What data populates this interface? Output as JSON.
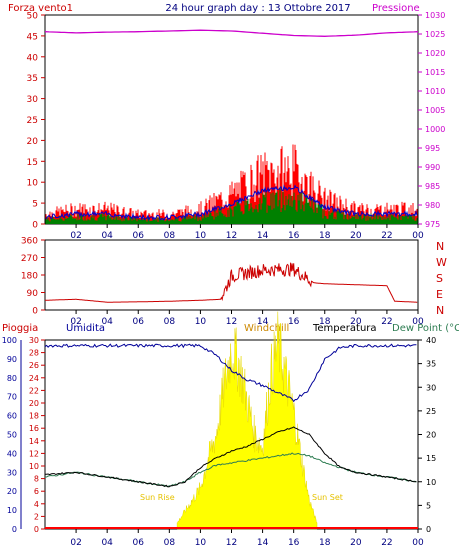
{
  "header": {
    "left_label": "Forza vento1",
    "title": "24 hour graph day : 13 Ottobre 2017",
    "right_label": "Pressione"
  },
  "wind_panel": {
    "left_ticks": [
      "0",
      "5",
      "10",
      "15",
      "20",
      "25",
      "30",
      "35",
      "40",
      "45",
      "50"
    ],
    "right_ticks": [
      "975",
      "980",
      "985",
      "990",
      "995",
      "1000",
      "1005",
      "1010",
      "1015",
      "1020",
      "1025",
      "1030"
    ],
    "x_ticks": [
      "02",
      "04",
      "06",
      "08",
      "10",
      "12",
      "14",
      "16",
      "18",
      "20",
      "22",
      "00"
    ]
  },
  "direction_panel": {
    "left_ticks": [
      "0",
      "90",
      "180",
      "270",
      "360"
    ],
    "right_letters": [
      "N",
      "W",
      "S",
      "E",
      "N"
    ],
    "x_ticks": [
      "02",
      "04",
      "06",
      "08",
      "10",
      "12",
      "14",
      "16",
      "18",
      "20",
      "22",
      "00"
    ]
  },
  "weather_panel": {
    "legend": {
      "pioggia": "Pioggia",
      "umidita": "Umidita",
      "windchill": "Windchill",
      "temperatura": "Temperatura",
      "dewpoint": "Dew Point (°C"
    },
    "hum_ticks": [
      "0",
      "10",
      "20",
      "30",
      "40",
      "50",
      "60",
      "70",
      "80",
      "90",
      "100"
    ],
    "rain_ticks": [
      "0",
      "2",
      "4",
      "6",
      "8",
      "10",
      "12",
      "14",
      "16",
      "18",
      "20",
      "22",
      "24",
      "26",
      "28",
      "30"
    ],
    "temp_ticks": [
      "0",
      "5",
      "10",
      "15",
      "20",
      "25",
      "30",
      "35",
      "40"
    ],
    "sun_rise": "Sun Rise",
    "sun_set": "Sun Set",
    "x_ticks": [
      "02",
      "04",
      "06",
      "08",
      "10",
      "12",
      "14",
      "16",
      "18",
      "20",
      "22",
      "00"
    ]
  },
  "colors": {
    "axis_red": "#cc0000",
    "pressure": "#cc00cc",
    "title_blue": "#000080",
    "wind_red": "#ff0000",
    "wind_green": "#008000",
    "wind_blue": "#0000cc",
    "direction": "#cc0000",
    "humidity": "#000099",
    "temperature": "#000000",
    "dewpoint": "#2e7d52",
    "windchill": "#cc8800",
    "solar": "#ffff00",
    "rain": "#ff0000"
  },
  "chart_data": [
    {
      "type": "line",
      "title": "24 hour graph day : 13 Ottobre 2017",
      "x": [
        0,
        2,
        4,
        6,
        8,
        10,
        12,
        14,
        16,
        18,
        20,
        22,
        24
      ],
      "series": [
        {
          "name": "Forza vento1",
          "axis": "left",
          "values": [
            2,
            3,
            3,
            2,
            2,
            3,
            6,
            10,
            11,
            5,
            3,
            3,
            3
          ]
        },
        {
          "name": "Pressione",
          "axis": "right",
          "values": [
            1025.6,
            1025.3,
            1025.5,
            1025.6,
            1025.8,
            1026.0,
            1025.8,
            1025.2,
            1024.6,
            1024.4,
            1024.7,
            1025.3,
            1025.6
          ]
        }
      ],
      "ylim_left": [
        0,
        50
      ],
      "ylim_right": [
        975,
        1030
      ]
    },
    {
      "type": "line",
      "x": [
        0,
        2,
        4,
        6,
        8,
        10,
        11.3,
        12,
        14,
        16,
        17.3,
        18,
        20,
        22,
        22.5,
        24
      ],
      "series": [
        {
          "name": "direction",
          "values": [
            50,
            55,
            40,
            42,
            45,
            50,
            55,
            175,
            205,
            210,
            140,
            135,
            130,
            125,
            45,
            40
          ]
        }
      ],
      "ylim": [
        0,
        360
      ]
    },
    {
      "type": "line",
      "x": [
        0,
        2,
        4,
        6,
        8,
        9,
        10,
        11,
        12,
        13,
        14,
        15,
        16,
        17,
        18,
        19,
        20,
        22,
        24
      ],
      "series": [
        {
          "name": "Umidita",
          "values": [
            97,
            97,
            97,
            97,
            97,
            97,
            97,
            92,
            84,
            79,
            76,
            72,
            68,
            74,
            90,
            96,
            97,
            97,
            97
          ]
        },
        {
          "name": "Temperatura",
          "values": [
            11.5,
            12,
            11,
            10,
            9,
            10,
            13,
            15,
            16.5,
            17.5,
            19,
            20.5,
            21.5,
            20,
            16,
            13,
            12,
            11,
            10
          ]
        },
        {
          "name": "Dew Point (°C",
          "values": [
            11,
            12,
            11,
            10,
            9,
            10,
            12,
            13.5,
            14,
            14.5,
            15,
            15.5,
            16,
            15.5,
            14,
            13,
            12,
            11,
            10
          ]
        },
        {
          "name": "Pioggia",
          "values": [
            0,
            0,
            0,
            0,
            0,
            0,
            0,
            0,
            0,
            0,
            0,
            0,
            0,
            0,
            0,
            0,
            0,
            0,
            0
          ]
        }
      ],
      "solar_radiation": {
        "x": [
          8.5,
          9,
          9.5,
          10,
          10.5,
          11,
          11.5,
          12,
          12.5,
          13,
          13.5,
          14,
          14.5,
          15,
          15.5,
          16,
          16.5,
          17,
          17.5
        ],
        "values": [
          1,
          3,
          5,
          7,
          12,
          16,
          24,
          31,
          28,
          22,
          16,
          14,
          26,
          32,
          26,
          20,
          12,
          5,
          1
        ]
      },
      "ylim_humidity": [
        0,
        100
      ],
      "ylim_rain": [
        0,
        30
      ],
      "ylim_temperature": [
        0,
        40
      ]
    }
  ]
}
